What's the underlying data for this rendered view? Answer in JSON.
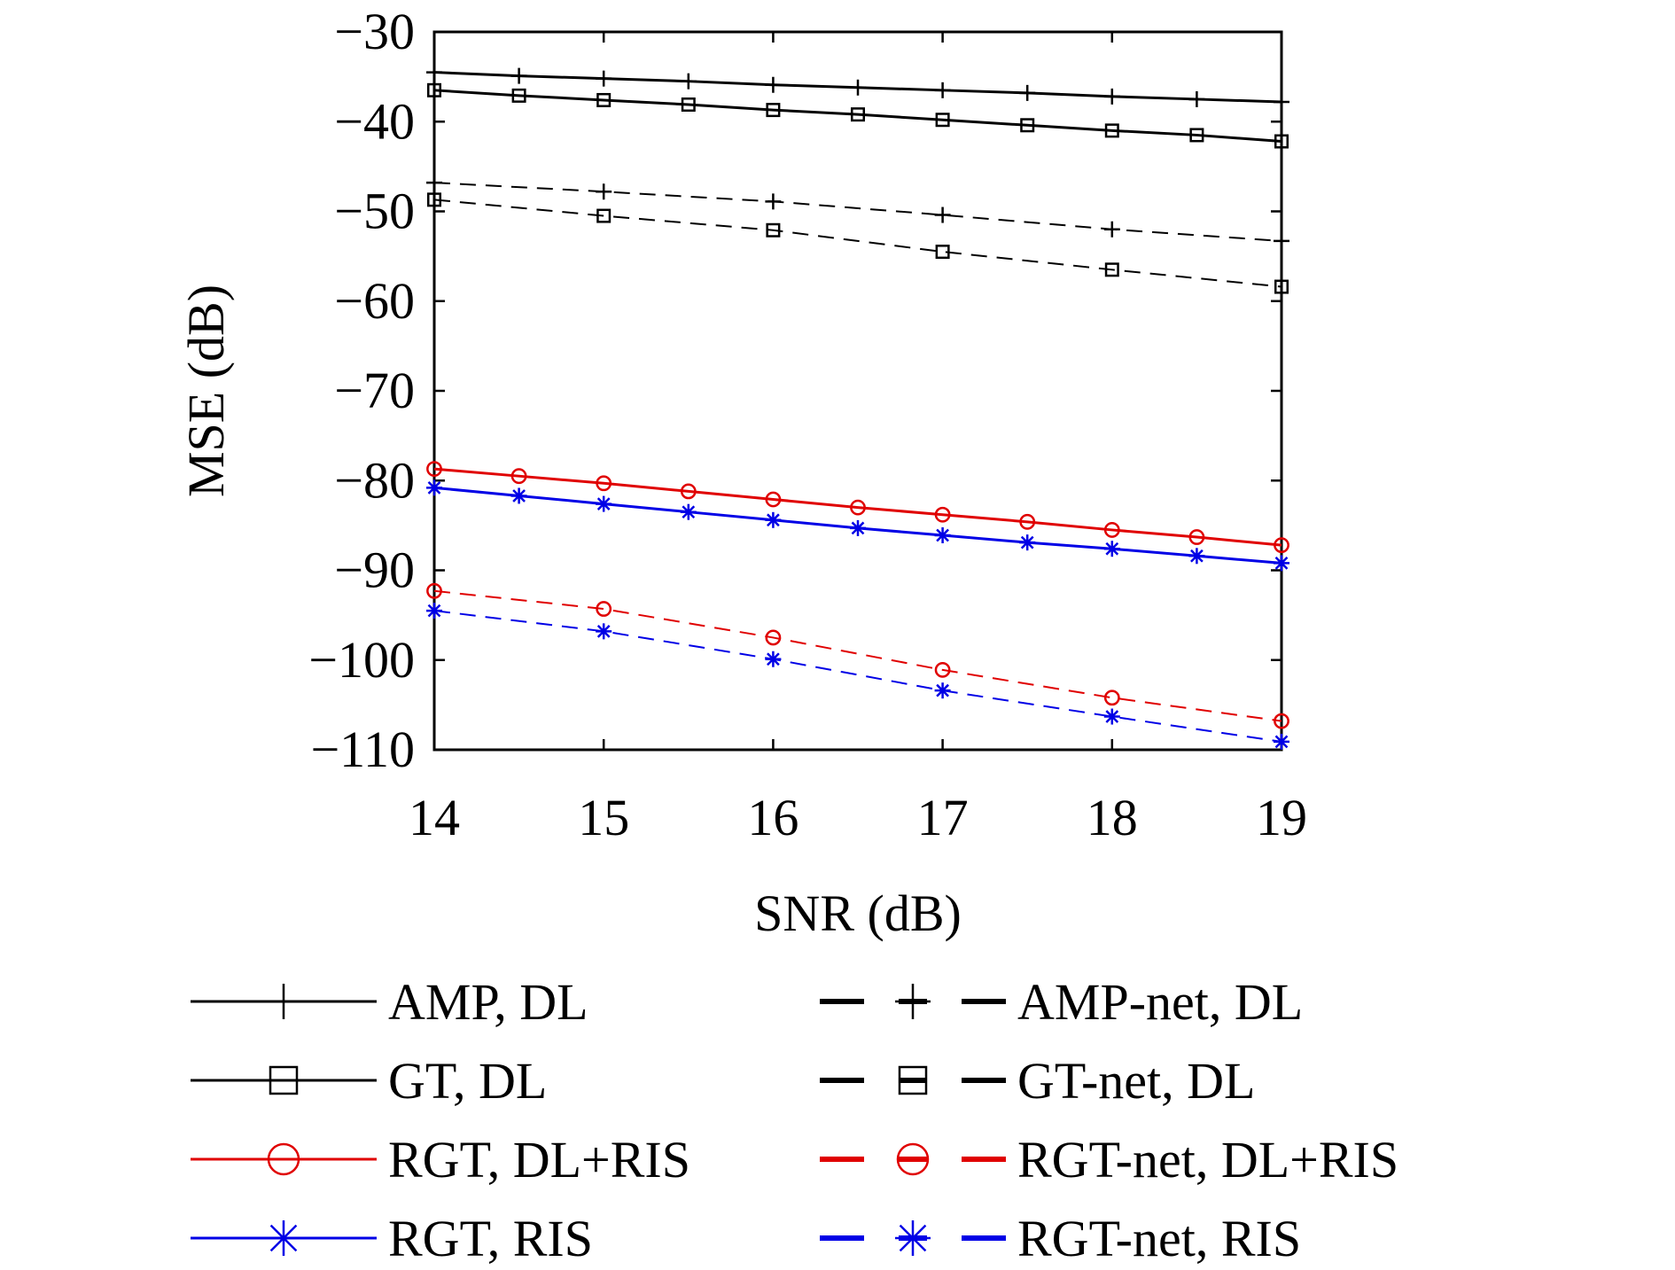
{
  "chart_data": {
    "type": "line",
    "title": "",
    "xlabel": "SNR (dB)",
    "ylabel": "MSE (dB)",
    "xlim": [
      14,
      19
    ],
    "ylim": [
      -110,
      -30
    ],
    "x_ticks": [
      14,
      15,
      16,
      17,
      18,
      19
    ],
    "y_ticks": [
      -30,
      -40,
      -50,
      -60,
      -70,
      -80,
      -90,
      -100,
      -110
    ],
    "x_tick_labels": [
      "14",
      "15",
      "16",
      "17",
      "18",
      "19"
    ],
    "y_tick_labels": [
      "−30",
      "−40",
      "−50",
      "−60",
      "−70",
      "−80",
      "−90",
      "−100",
      "−110"
    ],
    "grid": false,
    "legend_position": "bottom",
    "series": [
      {
        "name": "AMP, DL",
        "color": "#000000",
        "dash": "solid",
        "marker": "plus",
        "x": [
          14,
          14.5,
          15,
          15.5,
          16,
          16.5,
          17,
          17.5,
          18,
          18.5,
          19
        ],
        "values": [
          -34.5,
          -34.9,
          -35.2,
          -35.5,
          -35.9,
          -36.2,
          -36.5,
          -36.8,
          -37.2,
          -37.5,
          -37.8
        ]
      },
      {
        "name": "GT, DL",
        "color": "#000000",
        "dash": "solid",
        "marker": "square",
        "x": [
          14,
          14.5,
          15,
          15.5,
          16,
          16.5,
          17,
          17.5,
          18,
          18.5,
          19
        ],
        "values": [
          -36.5,
          -37.1,
          -37.6,
          -38.1,
          -38.7,
          -39.2,
          -39.8,
          -40.4,
          -41.0,
          -41.5,
          -42.2
        ]
      },
      {
        "name": "AMP-net, DL",
        "color": "#000000",
        "dash": "dashed",
        "marker": "plus",
        "x": [
          14,
          15,
          16,
          17,
          18,
          19
        ],
        "values": [
          -46.8,
          -47.8,
          -48.9,
          -50.4,
          -52.0,
          -53.3
        ]
      },
      {
        "name": "GT-net, DL",
        "color": "#000000",
        "dash": "dashed",
        "marker": "square",
        "x": [
          14,
          15,
          16,
          17,
          18,
          19
        ],
        "values": [
          -48.7,
          -50.5,
          -52.1,
          -54.5,
          -56.5,
          -58.4
        ]
      },
      {
        "name": "RGT, DL+RIS",
        "color": "#e00000",
        "dash": "solid",
        "marker": "circle",
        "x": [
          14,
          14.5,
          15,
          15.5,
          16,
          16.5,
          17,
          17.5,
          18,
          18.5,
          19
        ],
        "values": [
          -78.7,
          -79.5,
          -80.3,
          -81.2,
          -82.1,
          -83.0,
          -83.8,
          -84.6,
          -85.5,
          -86.3,
          -87.2
        ]
      },
      {
        "name": "RGT, RIS",
        "color": "#0000e6",
        "dash": "solid",
        "marker": "asterisk",
        "x": [
          14,
          14.5,
          15,
          15.5,
          16,
          16.5,
          17,
          17.5,
          18,
          18.5,
          19
        ],
        "values": [
          -80.8,
          -81.7,
          -82.6,
          -83.5,
          -84.4,
          -85.3,
          -86.1,
          -86.9,
          -87.6,
          -88.4,
          -89.2
        ]
      },
      {
        "name": "RGT-net, DL+RIS",
        "color": "#e00000",
        "dash": "dashed",
        "marker": "circle",
        "x": [
          14,
          15,
          16,
          17,
          18,
          19
        ],
        "values": [
          -92.3,
          -94.3,
          -97.5,
          -101.1,
          -104.2,
          -106.8
        ]
      },
      {
        "name": "RGT-net, RIS",
        "color": "#0000e6",
        "dash": "dashed",
        "marker": "asterisk",
        "x": [
          14,
          15,
          16,
          17,
          18,
          19
        ],
        "values": [
          -94.5,
          -96.8,
          -99.9,
          -103.4,
          -106.3,
          -109.1
        ]
      }
    ],
    "legend_order": [
      [
        "AMP, DL",
        "AMP-net, DL"
      ],
      [
        "GT, DL",
        "GT-net, DL"
      ],
      [
        "RGT, DL+RIS",
        "RGT-net, DL+RIS"
      ],
      [
        "RGT, RIS",
        "RGT-net, RIS"
      ]
    ]
  }
}
